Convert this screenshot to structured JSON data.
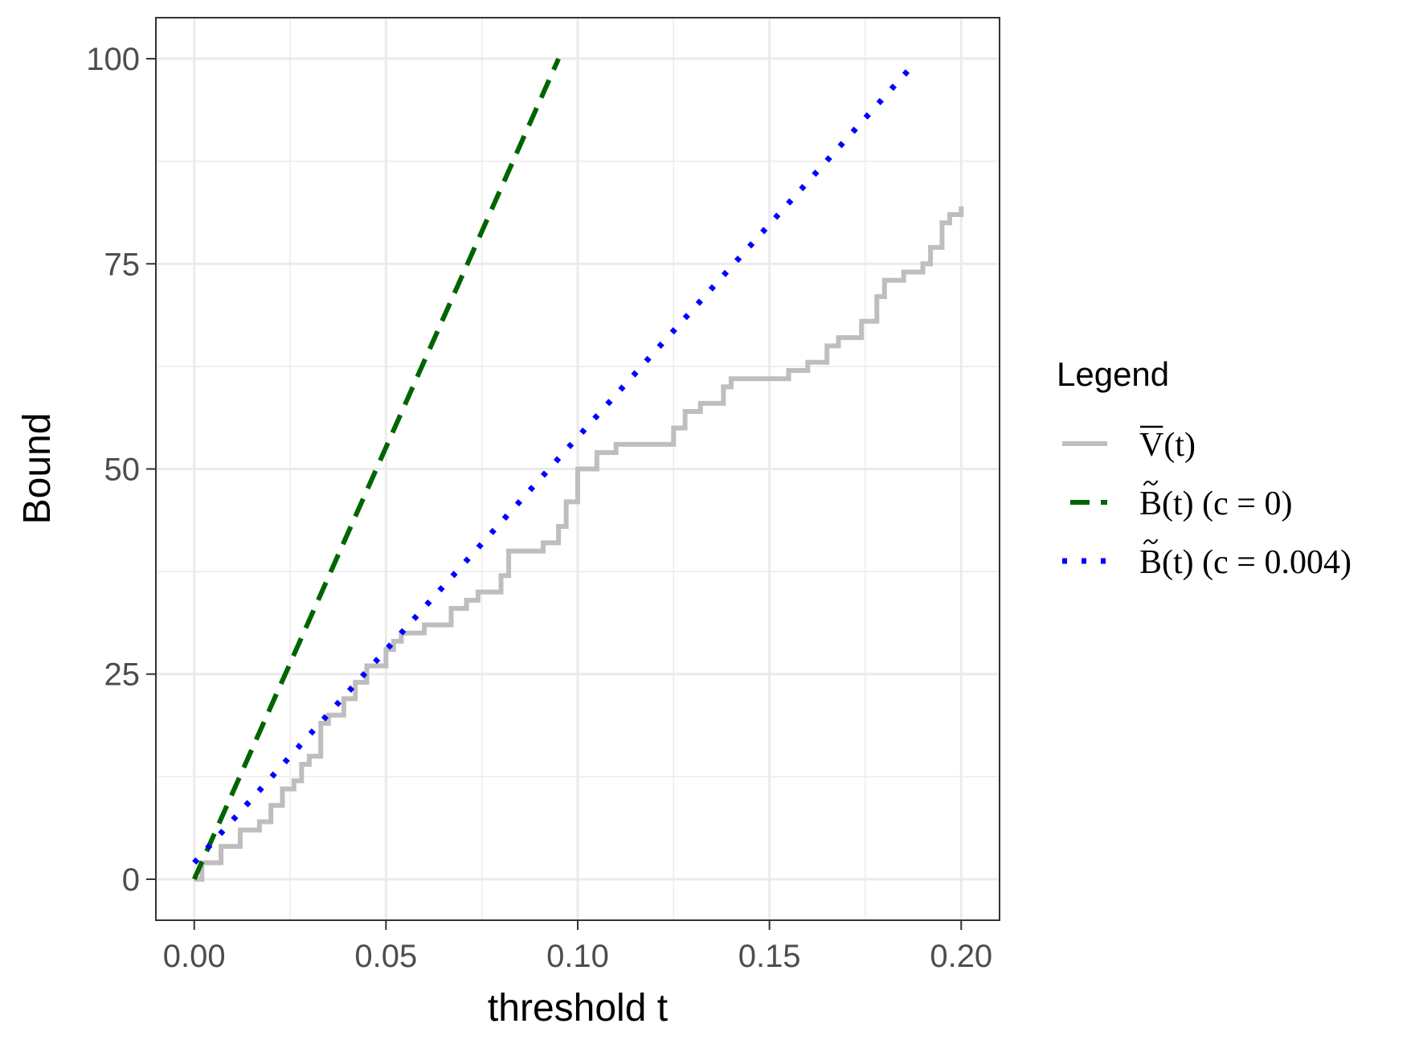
{
  "chart_data": {
    "type": "line",
    "xlabel": "threshold t",
    "ylabel": "Bound",
    "xlim": [
      -0.01,
      0.21
    ],
    "ylim": [
      -5,
      105
    ],
    "x_ticks": [
      0.0,
      0.05,
      0.1,
      0.15,
      0.2
    ],
    "x_tick_labels": [
      "0.00",
      "0.05",
      "0.10",
      "0.15",
      "0.20"
    ],
    "y_ticks": [
      0,
      25,
      50,
      75,
      100
    ],
    "y_tick_labels": [
      "0",
      "25",
      "50",
      "75",
      "100"
    ],
    "grid": true,
    "legend": {
      "title": "Legend",
      "placement": "right",
      "entries": [
        {
          "base": "V",
          "accent": "overline",
          "text": "(t)"
        },
        {
          "base": "B",
          "accent": "tilde",
          "text": "(t) (c = 0)"
        },
        {
          "base": "B",
          "accent": "tilde",
          "text": "(t) (c = 0.004)"
        }
      ]
    },
    "series": [
      {
        "color": "#bebebe",
        "style": "solid",
        "step": true,
        "points": [
          [
            0.0,
            0
          ],
          [
            0.002,
            2
          ],
          [
            0.007,
            4
          ],
          [
            0.012,
            6
          ],
          [
            0.017,
            7
          ],
          [
            0.02,
            9
          ],
          [
            0.023,
            11
          ],
          [
            0.026,
            12
          ],
          [
            0.028,
            14
          ],
          [
            0.03,
            15
          ],
          [
            0.033,
            19
          ],
          [
            0.035,
            20
          ],
          [
            0.039,
            22
          ],
          [
            0.042,
            24
          ],
          [
            0.045,
            26
          ],
          [
            0.05,
            28
          ],
          [
            0.052,
            29
          ],
          [
            0.054,
            30
          ],
          [
            0.06,
            31
          ],
          [
            0.067,
            33
          ],
          [
            0.071,
            34
          ],
          [
            0.074,
            35
          ],
          [
            0.08,
            37
          ],
          [
            0.082,
            40
          ],
          [
            0.091,
            41
          ],
          [
            0.095,
            43
          ],
          [
            0.097,
            46
          ],
          [
            0.1,
            50
          ],
          [
            0.105,
            52
          ],
          [
            0.11,
            53
          ],
          [
            0.125,
            55
          ],
          [
            0.128,
            57
          ],
          [
            0.132,
            58
          ],
          [
            0.138,
            60
          ],
          [
            0.14,
            61
          ],
          [
            0.155,
            62
          ],
          [
            0.16,
            63
          ],
          [
            0.165,
            65
          ],
          [
            0.168,
            66
          ],
          [
            0.174,
            68
          ],
          [
            0.178,
            71
          ],
          [
            0.18,
            73
          ],
          [
            0.185,
            74
          ],
          [
            0.19,
            75
          ],
          [
            0.192,
            77
          ],
          [
            0.195,
            80
          ],
          [
            0.197,
            81
          ],
          [
            0.2,
            82
          ]
        ]
      },
      {
        "color": "#006400",
        "style": "dashed",
        "points": [
          [
            0.0,
            0
          ],
          [
            0.095,
            100
          ]
        ]
      },
      {
        "color": "#0000ff",
        "style": "dotted",
        "points": [
          [
            0.0,
            2
          ],
          [
            0.187,
            99
          ]
        ]
      }
    ]
  }
}
